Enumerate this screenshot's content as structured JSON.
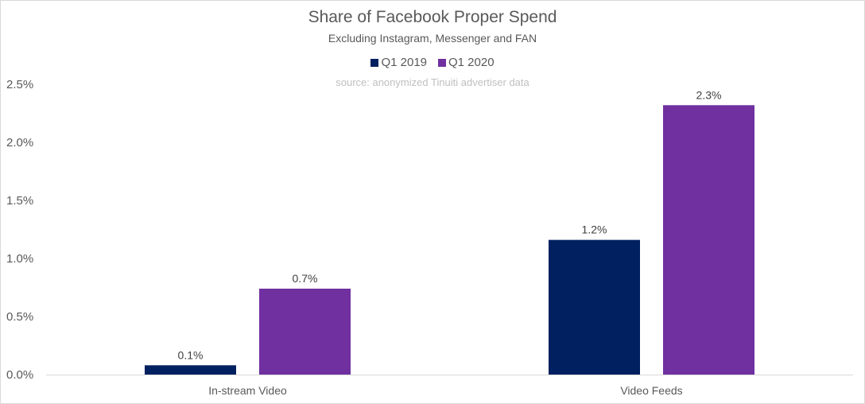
{
  "chart_data": {
    "type": "bar",
    "title": "Share of Facebook Proper Spend",
    "subtitle": "Excluding Instagram, Messenger and FAN",
    "source": "source: anonymized Tinuiti advertiser data",
    "categories": [
      "In-stream Video",
      "Video Feeds"
    ],
    "series": [
      {
        "name": "Q1 2019",
        "color": "#002060",
        "values": [
          0.08,
          1.16
        ],
        "labels": [
          "0.1%",
          "1.2%"
        ]
      },
      {
        "name": "Q1 2020",
        "color": "#7030A0",
        "values": [
          0.74,
          2.32
        ],
        "labels": [
          "0.7%",
          "2.3%"
        ]
      }
    ],
    "yticks": [
      0,
      0.5,
      1.0,
      1.5,
      2.0,
      2.5
    ],
    "ytick_labels": [
      "0.0%",
      "0.5%",
      "1.0%",
      "1.5%",
      "2.0%",
      "2.5%"
    ],
    "ylim": [
      0,
      2.5
    ],
    "xlabel": "",
    "ylabel": "",
    "grid": false,
    "legend_position": "top-center"
  }
}
